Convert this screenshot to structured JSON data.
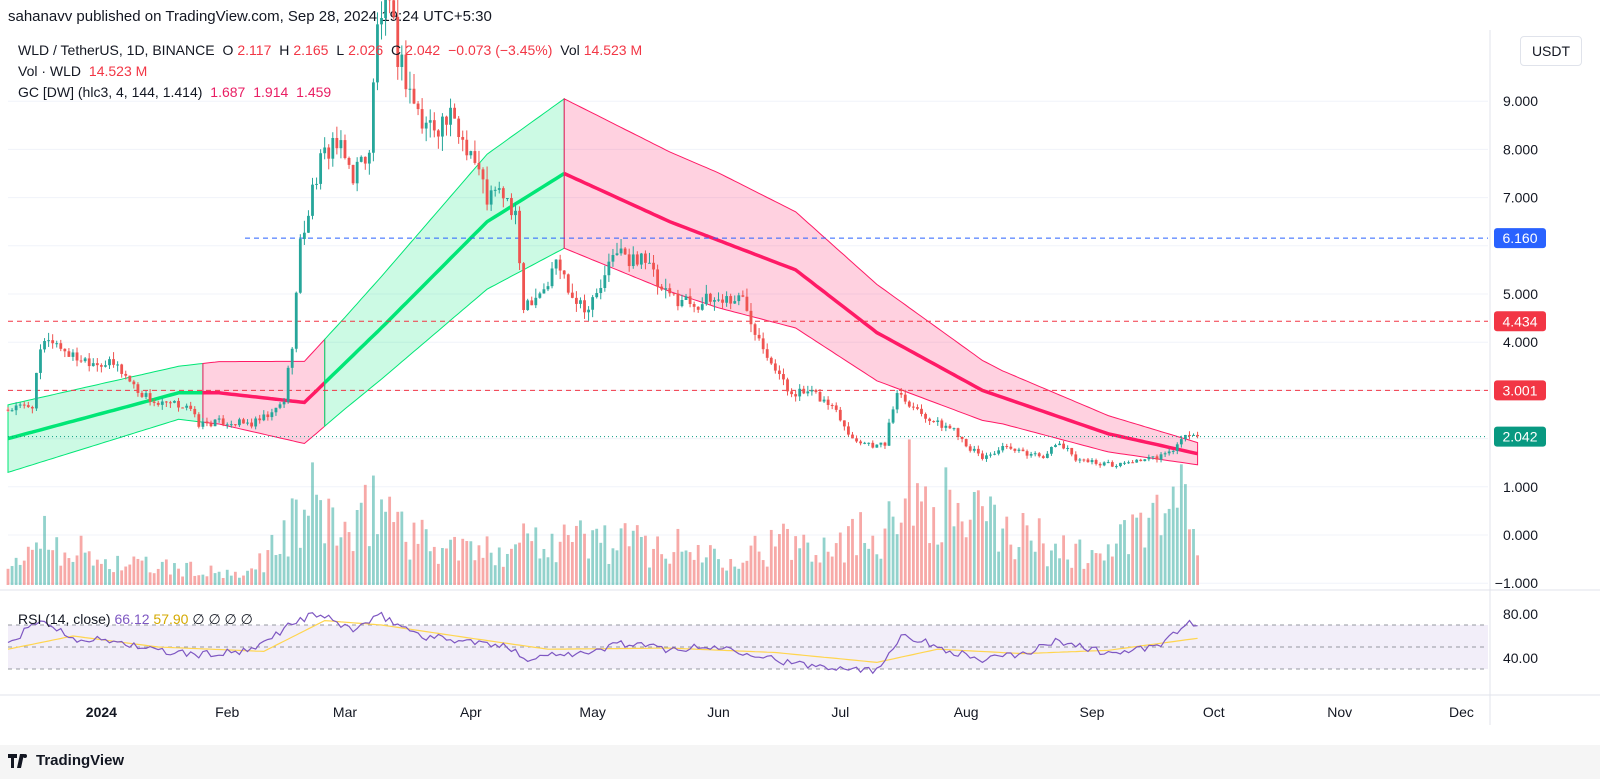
{
  "header": {
    "attribution": "sahanavv published on TradingView.com, Sep 28, 2024 19:24 UTC+5:30"
  },
  "legend": {
    "symbol": "WLD / TetherUS, 1D, BINANCE",
    "o_label": "O",
    "o_value": "2.117",
    "h_label": "H",
    "h_value": "2.165",
    "l_label": "L",
    "l_value": "2.026",
    "c_label": "C",
    "c_value": "2.042",
    "change": "−0.073 (−3.45%)",
    "vol_label": "Vol",
    "vol_value": "14.523 M",
    "vol_line_label": "Vol · WLD",
    "vol_line_value": "14.523 M",
    "gc_label": "GC [DW] (hlc3, 4, 144, 1.414)",
    "gc_values": [
      "1.687",
      "1.914",
      "1.459"
    ]
  },
  "rsi_legend": {
    "label": "RSI (14, close)",
    "rsi": "66.12",
    "ma": "57.90",
    "nulls": [
      "∅",
      "∅",
      "∅",
      "∅"
    ]
  },
  "currency_button": "USDT",
  "footer": {
    "brand": "TradingView"
  },
  "colors": {
    "up": "#26a69a",
    "down": "#ef5350",
    "gc_up": "#00e676",
    "gc_down": "#ff1a66",
    "rsi": "#7e57c2",
    "rsi_ma": "#ffd54f",
    "dash_blue": "#2962ff",
    "dash_red": "#f23645"
  },
  "chart_data": {
    "type": "candlestick",
    "price_axis": {
      "ticks": [
        "9.000",
        "8.000",
        "7.000",
        "6.000",
        "5.000",
        "4.000",
        "3.000",
        "2.000",
        "1.000",
        "0.000",
        "−1.000"
      ],
      "ylim": [
        -1,
        11.2
      ]
    },
    "time_axis": {
      "labels": [
        "2024",
        "Feb",
        "Mar",
        "Apr",
        "May",
        "Jun",
        "Jul",
        "Aug",
        "Sep",
        "Oct",
        "Nov",
        "Dec"
      ]
    },
    "horizontal_lines": [
      {
        "value": 6.16,
        "label": "6.160",
        "style": "dashed",
        "color": "#2962ff"
      },
      {
        "value": 4.434,
        "label": "4.434",
        "style": "dashed",
        "color": "#f23645"
      },
      {
        "value": 3.001,
        "label": "3.001",
        "style": "dashed",
        "color": "#f23645"
      },
      {
        "value": 2.042,
        "label": "2.042",
        "style": "dotted",
        "color": "#089981"
      }
    ],
    "close_anchors": [
      [
        "2023-12-09",
        2.6
      ],
      [
        "2023-12-15",
        2.7
      ],
      [
        "2023-12-17",
        3.8
      ],
      [
        "2023-12-19",
        4.1
      ],
      [
        "2023-12-25",
        3.7
      ],
      [
        "2024-01-05",
        3.5
      ],
      [
        "2024-01-10",
        3.0
      ],
      [
        "2024-01-15",
        2.7
      ],
      [
        "2024-01-22",
        2.7
      ],
      [
        "2024-01-25",
        2.3
      ],
      [
        "2024-01-31",
        2.35
      ],
      [
        "2024-02-07",
        2.3
      ],
      [
        "2024-02-12",
        2.5
      ],
      [
        "2024-02-15",
        2.8
      ],
      [
        "2024-02-17",
        4.0
      ],
      [
        "2024-02-19",
        6.0
      ],
      [
        "2024-02-23",
        7.5
      ],
      [
        "2024-02-27",
        8.2
      ],
      [
        "2024-03-03",
        7.5
      ],
      [
        "2024-03-07",
        8.0
      ],
      [
        "2024-03-09",
        10.5
      ],
      [
        "2024-03-11",
        11.2
      ],
      [
        "2024-03-14",
        10.0
      ],
      [
        "2024-03-20",
        8.5
      ],
      [
        "2024-03-27",
        8.6
      ],
      [
        "2024-04-01",
        8.0
      ],
      [
        "2024-04-05",
        7.0
      ],
      [
        "2024-04-09",
        7.1
      ],
      [
        "2024-04-12",
        6.5
      ],
      [
        "2024-04-14",
        4.8
      ],
      [
        "2024-04-17",
        5.0
      ],
      [
        "2024-04-20",
        5.2
      ],
      [
        "2024-04-22",
        5.7
      ],
      [
        "2024-04-26",
        5.0
      ],
      [
        "2024-04-30",
        4.7
      ],
      [
        "2024-05-04",
        5.3
      ],
      [
        "2024-05-07",
        6.0
      ],
      [
        "2024-05-10",
        5.6
      ],
      [
        "2024-05-13",
        5.9
      ],
      [
        "2024-05-18",
        5.0
      ],
      [
        "2024-05-23",
        4.9
      ],
      [
        "2024-05-27",
        4.8
      ],
      [
        "2024-06-01",
        4.9
      ],
      [
        "2024-06-07",
        4.9
      ],
      [
        "2024-06-10",
        4.3
      ],
      [
        "2024-06-13",
        3.8
      ],
      [
        "2024-06-18",
        3.0
      ],
      [
        "2024-06-25",
        2.9
      ],
      [
        "2024-06-30",
        2.6
      ],
      [
        "2024-07-04",
        2.0
      ],
      [
        "2024-07-10",
        1.85
      ],
      [
        "2024-07-12",
        1.9
      ],
      [
        "2024-07-15",
        3.0
      ],
      [
        "2024-07-20",
        2.6
      ],
      [
        "2024-07-25",
        2.3
      ],
      [
        "2024-07-29",
        2.2
      ],
      [
        "2024-08-02",
        1.8
      ],
      [
        "2024-08-05",
        1.6
      ],
      [
        "2024-08-10",
        1.8
      ],
      [
        "2024-08-15",
        1.7
      ],
      [
        "2024-08-20",
        1.65
      ],
      [
        "2024-08-24",
        1.9
      ],
      [
        "2024-08-28",
        1.6
      ],
      [
        "2024-09-02",
        1.5
      ],
      [
        "2024-09-07",
        1.45
      ],
      [
        "2024-09-12",
        1.55
      ],
      [
        "2024-09-17",
        1.6
      ],
      [
        "2024-09-20",
        1.7
      ],
      [
        "2024-09-23",
        1.95
      ],
      [
        "2024-09-25",
        2.1
      ],
      [
        "2024-09-27",
        2.042
      ]
    ],
    "gc_mid": [
      [
        "2023-12-09",
        2.0
      ],
      [
        "2024-01-20",
        2.95
      ],
      [
        "2024-01-30",
        2.95
      ],
      [
        "2024-02-20",
        2.75
      ],
      [
        "2024-03-10",
        4.3
      ],
      [
        "2024-04-05",
        6.5
      ],
      [
        "2024-04-24",
        7.5
      ],
      [
        "2024-05-20",
        6.5
      ],
      [
        "2024-06-20",
        5.5
      ],
      [
        "2024-07-10",
        4.2
      ],
      [
        "2024-08-05",
        3.0
      ],
      [
        "2024-09-05",
        2.1
      ],
      [
        "2024-09-27",
        1.687
      ]
    ],
    "gc_band_width": [
      [
        "2023-12-09",
        0.7
      ],
      [
        "2024-01-20",
        0.55
      ],
      [
        "2024-03-01",
        0.95
      ],
      [
        "2024-04-05",
        1.4
      ],
      [
        "2024-04-24",
        1.55
      ],
      [
        "2024-06-01",
        1.4
      ],
      [
        "2024-07-10",
        1.0
      ],
      [
        "2024-08-10",
        0.55
      ],
      [
        "2024-09-27",
        0.23
      ]
    ],
    "gc_color_segments": [
      [
        "2023-12-09",
        "2024-01-26",
        "up"
      ],
      [
        "2024-01-26",
        "2024-02-25",
        "down"
      ],
      [
        "2024-02-25",
        "2024-04-24",
        "up"
      ],
      [
        "2024-04-24",
        "2024-09-27",
        "down"
      ]
    ],
    "rsi_axis": {
      "ticks": [
        "80.00",
        "40.00"
      ],
      "ylim": [
        10,
        95
      ],
      "band": [
        30,
        70
      ]
    },
    "rsi_anchors": [
      [
        "2023-12-09",
        52
      ],
      [
        "2023-12-17",
        75
      ],
      [
        "2023-12-25",
        58
      ],
      [
        "2024-01-05",
        55
      ],
      [
        "2024-01-15",
        46
      ],
      [
        "2024-01-25",
        43
      ],
      [
        "2024-02-07",
        46
      ],
      [
        "2024-02-17",
        72
      ],
      [
        "2024-02-23",
        80
      ],
      [
        "2024-03-03",
        66
      ],
      [
        "2024-03-10",
        78
      ],
      [
        "2024-03-20",
        60
      ],
      [
        "2024-04-01",
        55
      ],
      [
        "2024-04-12",
        48
      ],
      [
        "2024-04-15",
        38
      ],
      [
        "2024-04-22",
        45
      ],
      [
        "2024-05-01",
        44
      ],
      [
        "2024-05-07",
        54
      ],
      [
        "2024-05-20",
        48
      ],
      [
        "2024-06-01",
        50
      ],
      [
        "2024-06-10",
        44
      ],
      [
        "2024-06-20",
        34
      ],
      [
        "2024-07-05",
        31
      ],
      [
        "2024-07-10",
        28
      ],
      [
        "2024-07-16",
        62
      ],
      [
        "2024-07-25",
        50
      ],
      [
        "2024-08-05",
        38
      ],
      [
        "2024-08-15",
        44
      ],
      [
        "2024-08-24",
        56
      ],
      [
        "2024-09-05",
        44
      ],
      [
        "2024-09-17",
        50
      ],
      [
        "2024-09-25",
        72
      ],
      [
        "2024-09-27",
        66
      ]
    ],
    "rsi_ma_anchors": [
      [
        "2023-12-09",
        48
      ],
      [
        "2023-12-25",
        60
      ],
      [
        "2024-01-15",
        50
      ],
      [
        "2024-02-10",
        46
      ],
      [
        "2024-02-25",
        74
      ],
      [
        "2024-03-10",
        70
      ],
      [
        "2024-04-01",
        58
      ],
      [
        "2024-04-20",
        48
      ],
      [
        "2024-05-20",
        49
      ],
      [
        "2024-06-15",
        45
      ],
      [
        "2024-07-10",
        36
      ],
      [
        "2024-07-25",
        48
      ],
      [
        "2024-08-15",
        44
      ],
      [
        "2024-09-05",
        47
      ],
      [
        "2024-09-27",
        57.9
      ]
    ],
    "volume_anchors": [
      [
        "2023-12-09",
        10
      ],
      [
        "2023-12-17",
        50
      ],
      [
        "2024-01-01",
        22
      ],
      [
        "2024-01-25",
        14
      ],
      [
        "2024-02-05",
        7
      ],
      [
        "2024-02-17",
        55
      ],
      [
        "2024-02-23",
        80
      ],
      [
        "2024-03-03",
        40
      ],
      [
        "2024-03-09",
        85
      ],
      [
        "2024-03-20",
        42
      ],
      [
        "2024-04-05",
        30
      ],
      [
        "2024-04-14",
        48
      ],
      [
        "2024-05-07",
        42
      ],
      [
        "2024-06-01",
        30
      ],
      [
        "2024-06-15",
        38
      ],
      [
        "2024-07-10",
        50
      ],
      [
        "2024-07-16",
        95
      ],
      [
        "2024-08-05",
        60
      ],
      [
        "2024-09-01",
        26
      ],
      [
        "2024-09-25",
        80
      ],
      [
        "2024-09-27",
        25
      ]
    ]
  }
}
